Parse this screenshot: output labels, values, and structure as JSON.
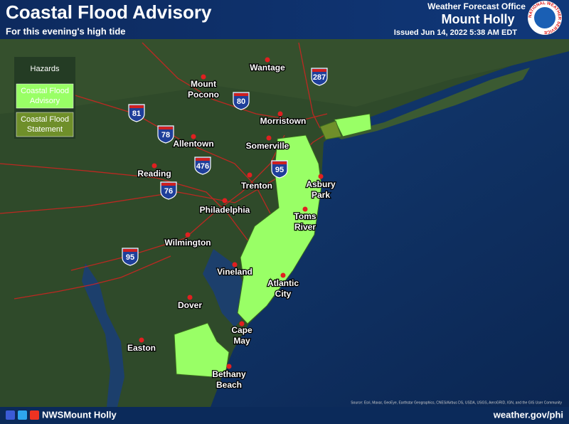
{
  "header": {
    "title": "Coastal Flood Advisory",
    "subtitle": "For this evening's high tide",
    "office_line": "Weather Forecast Office",
    "office_name": "Mount Holly",
    "issued": "Issued Jun 14, 2022 5:38 AM EDT",
    "logo_text": "NATIONAL WEATHER SERVICE"
  },
  "legend": {
    "title": "Hazards",
    "items": [
      {
        "label": [
          "Coastal Flood",
          "Advisory"
        ],
        "color": "#99ff66"
      },
      {
        "label": [
          "Coastal Flood",
          "Statement"
        ],
        "color": "#6f8f2a"
      }
    ]
  },
  "cities": [
    [
      "Wantage"
    ],
    [
      "Mount",
      "Pocono"
    ],
    [
      "Morristown"
    ],
    [
      "Allentown"
    ],
    [
      "Somerville"
    ],
    [
      "Reading"
    ],
    [
      "Trenton"
    ],
    [
      "Asbury",
      "Park"
    ],
    [
      "Philadelphia"
    ],
    [
      "Toms",
      "River"
    ],
    [
      "Wilmington"
    ],
    [
      "Vineland"
    ],
    [
      "Atlantic",
      "City"
    ],
    [
      "Dover"
    ],
    [
      "Cape",
      "May"
    ],
    [
      "Easton"
    ],
    [
      "Bethany",
      "Beach"
    ]
  ],
  "interstates": [
    "81",
    "78",
    "476",
    "76",
    "95",
    "80",
    "287",
    "95"
  ],
  "source": "Source: Esri, Maxar, GeoEye, Earthstar Geographics, CNES/Airbus DS, USDA, USGS, AeroGRID, IGN, and the GIS User Community",
  "footer": {
    "handle": "NWSMount Holly",
    "url": "weather.gov/phi"
  }
}
